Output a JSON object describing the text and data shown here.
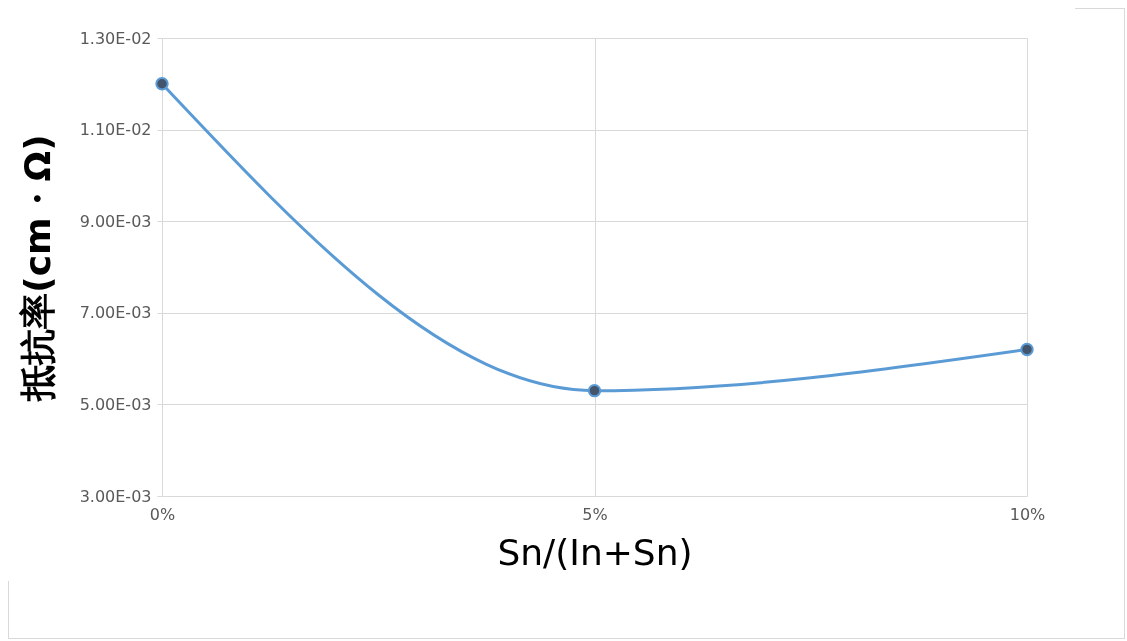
{
  "chart_data": {
    "type": "line",
    "xlabel": "Sn/(In+Sn)",
    "ylabel": "抵抗率(cm・Ω)",
    "x": [
      0,
      5,
      10
    ],
    "series": [
      {
        "color": "#5b9bd5",
        "values": [
          0.012,
          0.0053,
          0.0062
        ]
      }
    ],
    "xlim": [
      0,
      10
    ],
    "xticks": [
      {
        "value": 0,
        "label": "0%"
      },
      {
        "value": 5,
        "label": "5%"
      },
      {
        "value": 10,
        "label": "10%"
      }
    ],
    "ylim": [
      0.003,
      0.013
    ],
    "yticks": [
      {
        "value": 0.003,
        "label": "3.00E-03"
      },
      {
        "value": 0.005,
        "label": "5.00E-03"
      },
      {
        "value": 0.007,
        "label": "7.00E-03"
      },
      {
        "value": 0.009,
        "label": "9.00E-03"
      },
      {
        "value": 0.011,
        "label": "1.10E-02"
      },
      {
        "value": 0.013,
        "label": "1.30E-02"
      }
    ],
    "grid": true,
    "marker": "circle",
    "line_style": "solid"
  }
}
